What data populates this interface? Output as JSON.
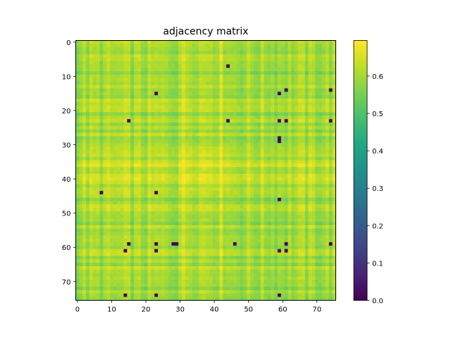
{
  "chart_data": {
    "type": "heatmap",
    "title": "adjacency matrix",
    "xlabel": "",
    "ylabel": "",
    "matrix_size": 76,
    "xlim": [
      -0.5,
      75.5
    ],
    "ylim": [
      75.5,
      -0.5
    ],
    "x_ticks": [
      0,
      10,
      20,
      30,
      40,
      50,
      60,
      70
    ],
    "y_ticks": [
      0,
      10,
      20,
      30,
      40,
      50,
      60,
      70
    ],
    "colormap": "viridis",
    "colorbar": {
      "vmin": 0.0,
      "vmax": 0.695,
      "ticks": [
        0.0,
        0.1,
        0.2,
        0.3,
        0.4,
        0.5,
        0.6
      ],
      "tick_labels": [
        "0.0",
        "0.1",
        "0.2",
        "0.3",
        "0.4",
        "0.5",
        "0.6"
      ]
    },
    "typical_value_range": [
      0.53,
      0.69
    ],
    "bright_rows": [
      31,
      32,
      33,
      34,
      35,
      36,
      37,
      38,
      39,
      40,
      41,
      42,
      43
    ],
    "bright_cols": [
      30,
      31,
      32,
      33,
      34,
      35,
      36,
      37,
      38,
      39,
      40,
      41,
      42,
      43,
      44
    ],
    "zero_cells": [
      [
        7,
        44
      ],
      [
        14,
        61
      ],
      [
        14,
        74
      ],
      [
        15,
        23
      ],
      [
        15,
        59
      ],
      [
        23,
        15
      ],
      [
        23,
        44
      ],
      [
        23,
        59
      ],
      [
        23,
        61
      ],
      [
        23,
        74
      ],
      [
        28,
        59
      ],
      [
        29,
        59
      ],
      [
        44,
        7
      ],
      [
        44,
        23
      ],
      [
        46,
        59
      ],
      [
        59,
        15
      ],
      [
        59,
        23
      ],
      [
        59,
        28
      ],
      [
        59,
        29
      ],
      [
        59,
        46
      ],
      [
        59,
        61
      ],
      [
        59,
        74
      ],
      [
        61,
        14
      ],
      [
        61,
        23
      ],
      [
        61,
        59
      ],
      [
        61,
        61
      ],
      [
        74,
        14
      ],
      [
        74,
        23
      ],
      [
        74,
        59
      ]
    ]
  }
}
